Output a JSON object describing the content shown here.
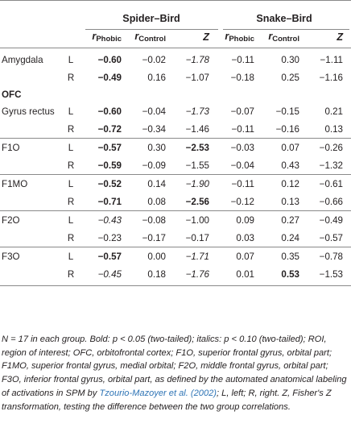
{
  "groups": [
    "Spider–Bird",
    "Snake–Bird"
  ],
  "subheaders": {
    "r_phobic_base": "r",
    "r_phobic_sub": "Phobic",
    "r_control_base": "r",
    "r_control_sub": "Control",
    "z": "Z"
  },
  "rows": [
    {
      "region": "Amygdala",
      "side": "L",
      "v": [
        "−0.60",
        "−0.02",
        "−1.78",
        "−0.11",
        "0.30",
        "−1.11"
      ],
      "style": [
        "b",
        "",
        "i",
        "",
        "",
        ""
      ],
      "section": "first"
    },
    {
      "region": "",
      "side": "R",
      "v": [
        "−0.49",
        "0.16",
        "−1.07",
        "−0.18",
        "0.25",
        "−1.16"
      ],
      "style": [
        "b",
        "",
        "",
        "",
        "",
        ""
      ]
    },
    {
      "label": "OFC"
    },
    {
      "region": "Gyrus rectus",
      "side": "L",
      "v": [
        "−0.60",
        "−0.04",
        "−1.73",
        "−0.07",
        "−0.15",
        "0.21"
      ],
      "style": [
        "b",
        "",
        "i",
        "",
        "",
        ""
      ]
    },
    {
      "region": "",
      "side": "R",
      "v": [
        "−0.72",
        "−0.34",
        "−1.46",
        "−0.11",
        "−0.16",
        "0.13"
      ],
      "style": [
        "b",
        "",
        "",
        "",
        "",
        ""
      ]
    },
    {
      "region": "F1O",
      "side": "L",
      "v": [
        "−0.57",
        "0.30",
        "−2.53",
        "−0.03",
        "0.07",
        "−0.26"
      ],
      "style": [
        "b",
        "",
        "b",
        "",
        "",
        ""
      ],
      "section": "sec"
    },
    {
      "region": "",
      "side": "R",
      "v": [
        "−0.59",
        "−0.09",
        "−1.55",
        "−0.04",
        "0.43",
        "−1.32"
      ],
      "style": [
        "b",
        "",
        "",
        "",
        "",
        ""
      ]
    },
    {
      "region": "F1MO",
      "side": "L",
      "v": [
        "−0.52",
        "0.14",
        "−1.90",
        "−0.11",
        "0.12",
        "−0.61"
      ],
      "style": [
        "b",
        "",
        "i",
        "",
        "",
        ""
      ],
      "section": "sec"
    },
    {
      "region": "",
      "side": "R",
      "v": [
        "−0.71",
        "0.08",
        "−2.56",
        "−0.12",
        "0.13",
        "−0.66"
      ],
      "style": [
        "b",
        "",
        "b",
        "",
        "",
        ""
      ]
    },
    {
      "region": "F2O",
      "side": "L",
      "v": [
        "−0.43",
        "−0.08",
        "−1.00",
        "0.09",
        "0.27",
        "−0.49"
      ],
      "style": [
        "i",
        "",
        "",
        "",
        "",
        ""
      ],
      "section": "sec"
    },
    {
      "region": "",
      "side": "R",
      "v": [
        "−0.23",
        "−0.17",
        "−0.17",
        "0.03",
        "0.24",
        "−0.57"
      ],
      "style": [
        "",
        "",
        "",
        "",
        "",
        ""
      ]
    },
    {
      "region": "F3O",
      "side": "L",
      "v": [
        "−0.57",
        "0.00",
        "−1.71",
        "0.07",
        "0.35",
        "−0.78"
      ],
      "style": [
        "b",
        "",
        "i",
        "",
        "",
        ""
      ],
      "section": "sec"
    },
    {
      "region": "",
      "side": "R",
      "v": [
        "−0.45",
        "0.18",
        "−1.76",
        "0.01",
        "0.53",
        "−1.53"
      ],
      "style": [
        "i",
        "",
        "i",
        "",
        "b",
        ""
      ]
    }
  ],
  "note": {
    "text_before_ref": "N = 17 in each group. Bold: p < 0.05 (two-tailed); italics: p < 0.10 (two-tailed); ROI, region of interest; OFC, orbitofrontal cortex; F1O, superior frontal gyrus, orbital part; F1MO, superior frontal gyrus, medial orbital; F2O, middle frontal gyrus, orbital part; F3O, inferior frontal gyrus, orbital part, as defined by the automated anatomical labeling of activations in SPM by ",
    "ref": "Tzourio-Mazoyer et al. (2002)",
    "text_after_ref": "; L, left; R, right. Z, Fisher's Z transformation, testing the difference between the two group correlations."
  }
}
